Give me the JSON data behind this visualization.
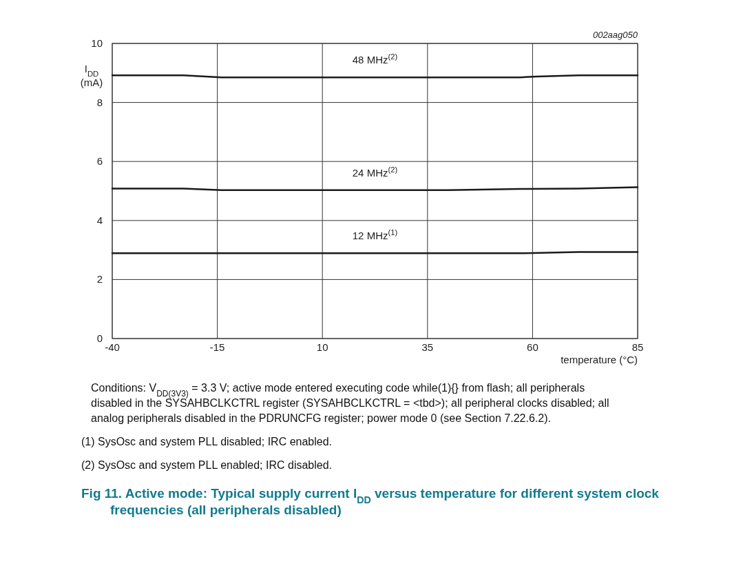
{
  "chart_data": {
    "type": "line",
    "title": "Fig 11.  Active mode: Typical supply current I$_{DD}$ versus temperature for different system clock frequencies (all peripherals disabled)",
    "xlabel": "temperature (°C)",
    "ylabel": "I$_{DD}$ (mA)",
    "xlim": [
      -40,
      85
    ],
    "xticks": [
      -40,
      -15,
      10,
      35,
      60,
      85
    ],
    "ylim": [
      0,
      10
    ],
    "yticks": [
      0,
      2,
      4,
      6,
      8,
      10
    ],
    "grid": true,
    "marker": "none",
    "line_style": "solid",
    "series": [
      {
        "name": "48 MHz$^{(2)}$",
        "color": "#1a1a1a",
        "x": [
          -40,
          -23,
          -14,
          57,
          61,
          71,
          85
        ],
        "values": [
          8.92,
          8.92,
          8.85,
          8.85,
          8.88,
          8.92,
          8.92
        ]
      },
      {
        "name": "24 MHz$^{(2)}$",
        "color": "#1a1a1a",
        "x": [
          -40,
          -23,
          -14,
          40,
          57,
          71,
          85
        ],
        "values": [
          5.08,
          5.08,
          5.03,
          5.03,
          5.07,
          5.08,
          5.13
        ]
      },
      {
        "name": "12 MHz$^{(1)}$",
        "color": "#1a1a1a",
        "x": [
          -40,
          57,
          71,
          85
        ],
        "values": [
          2.89,
          2.89,
          2.93,
          2.93
        ]
      }
    ],
    "annotations": [
      "002aag050",
      "Conditions: V$_{DD(3V3)}$ = 3.3 V; active mode entered executing code while(1){} from flash; all peripherals disabled in the SYSAHBCLKCTRL register (SYSAHBCLKCTRL = <tbd>); all peripheral clocks disabled; all analog peripherals disabled in the PDRUNCFG register; power mode 0 (see Section 7.22.6.2).",
      "(1)   SysOsc and system PLL disabled; IRC enabled.",
      "(2)   SysOsc and system PLL enabled; IRC disabled."
    ]
  }
}
